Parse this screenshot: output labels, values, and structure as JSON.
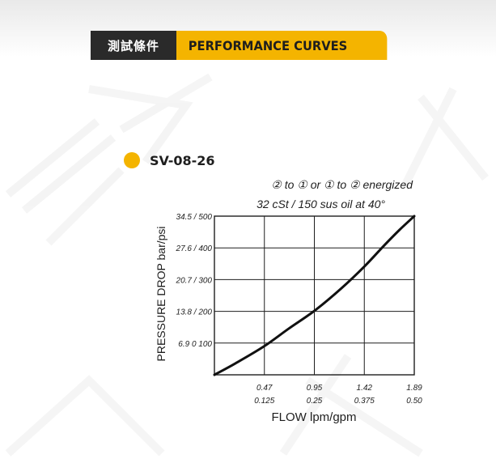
{
  "header": {
    "cn_label": "測試條件",
    "en_label": "PERFORMANCE CURVES"
  },
  "model": {
    "name": "SV-08-26"
  },
  "colors": {
    "accent": "#f4b400",
    "dark": "#2a2a2a",
    "curve": "#111111"
  },
  "chart_data": {
    "type": "line",
    "title": "② to ① or ① to ② energized",
    "subtitle": "32 cSt / 150 sus oil at 40°",
    "xlabel": "FLOW  lpm/gpm",
    "ylabel": "PRESSURE DROP  bar/psi",
    "x_ticks_lpm": [
      "0.47",
      "0.95",
      "1.42",
      "1.89"
    ],
    "x_ticks_gpm": [
      "0.125",
      "0.25",
      "0.375",
      "0.50"
    ],
    "y_ticks": [
      "34.5 / 500",
      "27.6 / 400",
      "20.7 / 300",
      "13.8 / 200",
      "6.9 0 100"
    ],
    "xlim": [
      0,
      1.89
    ],
    "ylim": [
      0,
      34.5
    ],
    "grid": true,
    "series": [
      {
        "x": [
          0,
          0.2,
          0.47,
          0.7,
          0.95,
          1.2,
          1.42,
          1.6,
          1.75,
          1.89
        ],
        "y": [
          0,
          2.5,
          6.2,
          10.0,
          14.0,
          18.8,
          23.6,
          28.0,
          31.5,
          34.5
        ]
      }
    ]
  }
}
